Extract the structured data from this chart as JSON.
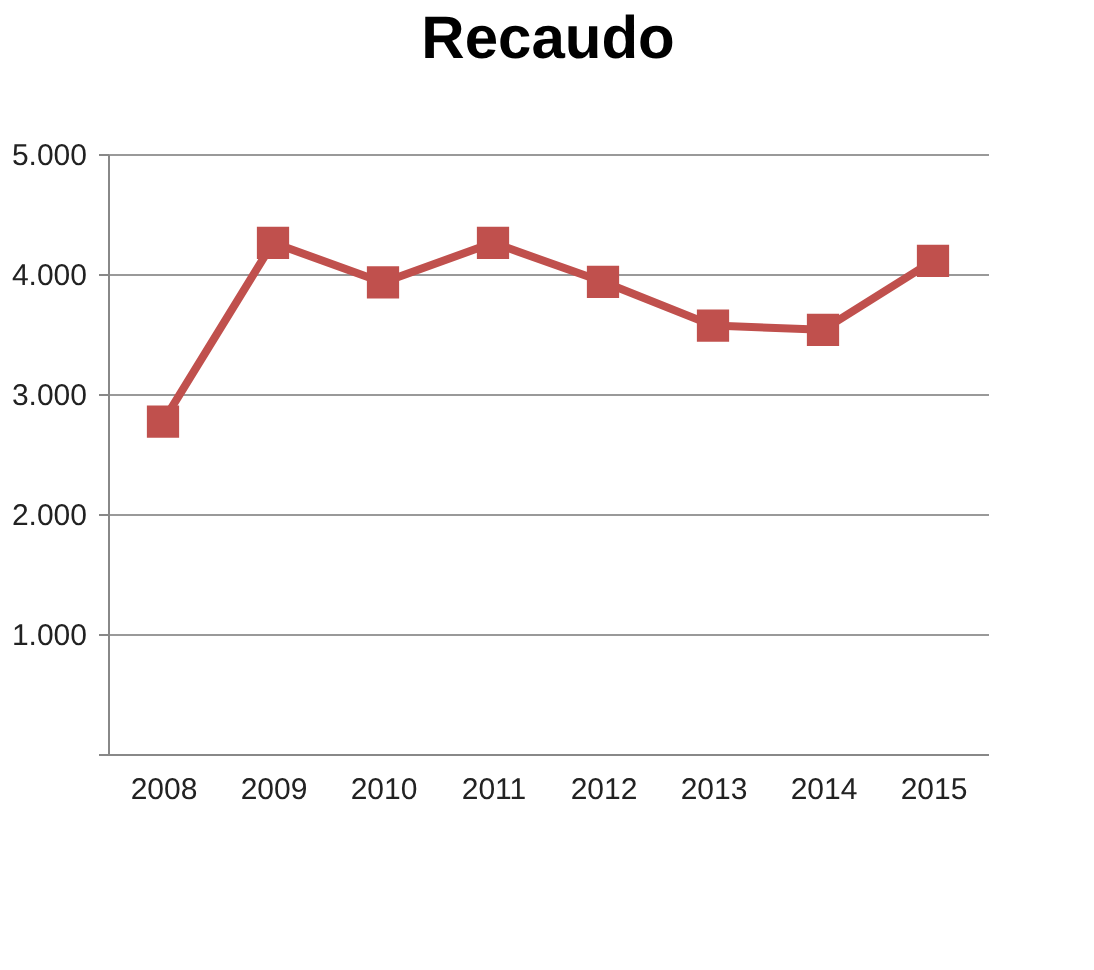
{
  "chart_data": {
    "type": "line",
    "title": "Recaudo",
    "categories": [
      "2008",
      "2009",
      "2010",
      "2011",
      "2012",
      "2013",
      "2014",
      "2015"
    ],
    "series": [
      {
        "color": "#c0504d",
        "values": [
          2770,
          4260,
          3930,
          4260,
          3935,
          3570,
          3535,
          4110
        ]
      }
    ],
    "ylim": [
      0,
      5000
    ],
    "yticks": [
      {
        "value": 0,
        "label": null
      },
      {
        "value": 1000,
        "label": "1.000"
      },
      {
        "value": 2000,
        "label": "2.000"
      },
      {
        "value": 3000,
        "label": "3.000"
      },
      {
        "value": 4000,
        "label": "4.000"
      },
      {
        "value": 5000,
        "label": "5.000"
      }
    ],
    "grid": "y",
    "legend": false,
    "marker": "square",
    "line_style": "solid"
  }
}
